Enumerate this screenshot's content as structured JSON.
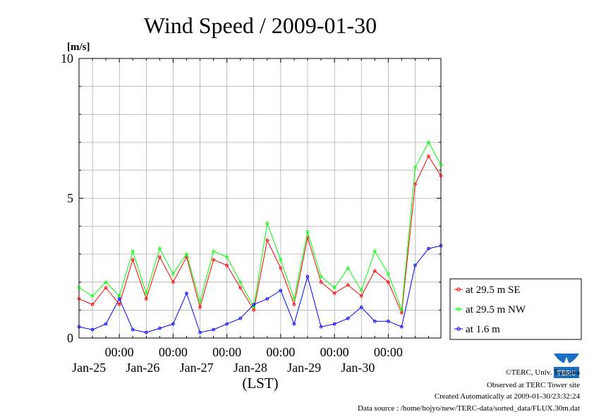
{
  "chart_data": {
    "type": "line",
    "title": "Wind Speed / 2009-01-30",
    "ylabel": "[m/s]",
    "xlabel": "(LST)",
    "ylim": [
      0,
      10
    ],
    "yticks": [
      0,
      5,
      10
    ],
    "xlim": [
      "2009-01-24 06:00",
      "2009-01-30 23:30"
    ],
    "x_major_ticks": [
      {
        "time": "2009-01-25 00:00",
        "label": "00:00",
        "date_label": "Jan-25"
      },
      {
        "time": "2009-01-26 00:00",
        "label": "00:00",
        "date_label": "Jan-26"
      },
      {
        "time": "2009-01-27 00:00",
        "label": "00:00",
        "date_label": "Jan-27"
      },
      {
        "time": "2009-01-28 00:00",
        "label": "00:00",
        "date_label": "Jan-28"
      },
      {
        "time": "2009-01-29 00:00",
        "label": "00:00",
        "date_label": "Jan-29"
      },
      {
        "time": "2009-01-30 00:00",
        "label": "00:00",
        "date_label": "Jan-30"
      }
    ],
    "grid": true,
    "legend_position": "right",
    "series": [
      {
        "name": "at 29.5 m SE",
        "color": "#ff0000",
        "points": [
          [
            "2009-01-24 06:00",
            1.4
          ],
          [
            "2009-01-24 12:00",
            1.2
          ],
          [
            "2009-01-24 18:00",
            1.8
          ],
          [
            "2009-01-25 00:00",
            1.2
          ],
          [
            "2009-01-25 06:00",
            2.8
          ],
          [
            "2009-01-25 12:00",
            1.4
          ],
          [
            "2009-01-25 18:00",
            2.9
          ],
          [
            "2009-01-26 00:00",
            2.0
          ],
          [
            "2009-01-26 06:00",
            2.9
          ],
          [
            "2009-01-26 12:00",
            1.1
          ],
          [
            "2009-01-26 18:00",
            2.8
          ],
          [
            "2009-01-27 00:00",
            2.6
          ],
          [
            "2009-01-27 06:00",
            1.8
          ],
          [
            "2009-01-27 12:00",
            1.0
          ],
          [
            "2009-01-27 18:00",
            3.5
          ],
          [
            "2009-01-28 00:00",
            2.5
          ],
          [
            "2009-01-28 06:00",
            1.2
          ],
          [
            "2009-01-28 12:00",
            3.6
          ],
          [
            "2009-01-28 18:00",
            2.0
          ],
          [
            "2009-01-29 00:00",
            1.6
          ],
          [
            "2009-01-29 06:00",
            1.9
          ],
          [
            "2009-01-29 12:00",
            1.5
          ],
          [
            "2009-01-29 18:00",
            2.4
          ],
          [
            "2009-01-30 00:00",
            2.0
          ],
          [
            "2009-01-30 06:00",
            0.9
          ],
          [
            "2009-01-30 12:00",
            5.5
          ],
          [
            "2009-01-30 18:00",
            6.5
          ],
          [
            "2009-01-30 23:30",
            5.8
          ]
        ]
      },
      {
        "name": "at 29.5 m NW",
        "color": "#00ff00",
        "points": [
          [
            "2009-01-24 06:00",
            1.8
          ],
          [
            "2009-01-24 12:00",
            1.5
          ],
          [
            "2009-01-24 18:00",
            2.0
          ],
          [
            "2009-01-25 00:00",
            1.5
          ],
          [
            "2009-01-25 06:00",
            3.1
          ],
          [
            "2009-01-25 12:00",
            1.6
          ],
          [
            "2009-01-25 18:00",
            3.2
          ],
          [
            "2009-01-26 00:00",
            2.3
          ],
          [
            "2009-01-26 06:00",
            3.0
          ],
          [
            "2009-01-26 12:00",
            1.3
          ],
          [
            "2009-01-26 18:00",
            3.1
          ],
          [
            "2009-01-27 00:00",
            2.9
          ],
          [
            "2009-01-27 06:00",
            2.0
          ],
          [
            "2009-01-27 12:00",
            1.1
          ],
          [
            "2009-01-27 18:00",
            4.1
          ],
          [
            "2009-01-28 00:00",
            2.8
          ],
          [
            "2009-01-28 06:00",
            1.4
          ],
          [
            "2009-01-28 12:00",
            3.8
          ],
          [
            "2009-01-28 18:00",
            2.2
          ],
          [
            "2009-01-29 00:00",
            1.8
          ],
          [
            "2009-01-29 06:00",
            2.5
          ],
          [
            "2009-01-29 12:00",
            1.7
          ],
          [
            "2009-01-29 18:00",
            3.1
          ],
          [
            "2009-01-30 00:00",
            2.3
          ],
          [
            "2009-01-30 06:00",
            1.0
          ],
          [
            "2009-01-30 12:00",
            6.1
          ],
          [
            "2009-01-30 18:00",
            7.0
          ],
          [
            "2009-01-30 23:30",
            6.2
          ]
        ]
      },
      {
        "name": "at 1.6 m",
        "color": "#0000ff",
        "points": [
          [
            "2009-01-24 06:00",
            0.4
          ],
          [
            "2009-01-24 12:00",
            0.3
          ],
          [
            "2009-01-24 18:00",
            0.5
          ],
          [
            "2009-01-25 00:00",
            1.4
          ],
          [
            "2009-01-25 06:00",
            0.3
          ],
          [
            "2009-01-25 12:00",
            0.2
          ],
          [
            "2009-01-25 18:00",
            0.35
          ],
          [
            "2009-01-26 00:00",
            0.5
          ],
          [
            "2009-01-26 06:00",
            1.6
          ],
          [
            "2009-01-26 12:00",
            0.2
          ],
          [
            "2009-01-26 18:00",
            0.3
          ],
          [
            "2009-01-27 00:00",
            0.5
          ],
          [
            "2009-01-27 06:00",
            0.7
          ],
          [
            "2009-01-27 12:00",
            1.2
          ],
          [
            "2009-01-27 18:00",
            1.4
          ],
          [
            "2009-01-28 00:00",
            1.7
          ],
          [
            "2009-01-28 06:00",
            0.5
          ],
          [
            "2009-01-28 12:00",
            2.2
          ],
          [
            "2009-01-28 18:00",
            0.4
          ],
          [
            "2009-01-29 00:00",
            0.5
          ],
          [
            "2009-01-29 06:00",
            0.7
          ],
          [
            "2009-01-29 12:00",
            1.1
          ],
          [
            "2009-01-29 18:00",
            0.6
          ],
          [
            "2009-01-30 00:00",
            0.6
          ],
          [
            "2009-01-30 06:00",
            0.4
          ],
          [
            "2009-01-30 12:00",
            2.6
          ],
          [
            "2009-01-30 18:00",
            3.2
          ],
          [
            "2009-01-30 23:30",
            3.3
          ]
        ]
      }
    ]
  },
  "footer": {
    "copyright": "©TERC, Univ. Tsukuba",
    "observed": "Observed at TERC Tower site",
    "created": "Created Automatically at 2009-01-30/23:32:24",
    "source": "Data source : /home/hojyo/new/TERC-data/sorted_data/FLUX.30m.dat"
  },
  "logo": {
    "text": "TERC",
    "color": "#1a6fc4"
  }
}
